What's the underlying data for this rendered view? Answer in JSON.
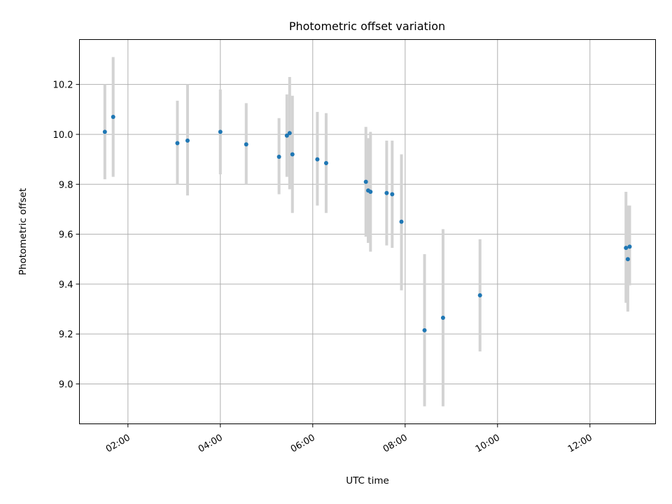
{
  "chart_data": {
    "type": "scatter",
    "title": "Photometric offset variation",
    "xlabel": "UTC time",
    "ylabel": "Photometric offset",
    "x_unit": "hours UTC",
    "xlim": [
      0.95,
      13.42
    ],
    "ylim": [
      8.84,
      10.38
    ],
    "xticks": [
      2,
      4,
      6,
      8,
      10,
      12
    ],
    "xtick_labels": [
      "02:00",
      "04:00",
      "06:00",
      "08:00",
      "10:00",
      "12:00"
    ],
    "yticks": [
      9.0,
      9.2,
      9.4,
      9.6,
      9.8,
      10.0,
      10.2
    ],
    "ytick_labels": [
      "9.0",
      "9.2",
      "9.4",
      "9.6",
      "9.8",
      "10.0",
      "10.2"
    ],
    "grid": true,
    "point_color": "#1f77b4",
    "errorbar_color": "#d3d3d3",
    "points": [
      {
        "x": 1.5,
        "y": 10.01,
        "ylow": 9.82,
        "yhigh": 10.2
      },
      {
        "x": 1.68,
        "y": 10.07,
        "ylow": 9.83,
        "yhigh": 10.31
      },
      {
        "x": 3.07,
        "y": 9.965,
        "ylow": 9.8,
        "yhigh": 10.135
      },
      {
        "x": 3.29,
        "y": 9.975,
        "ylow": 9.755,
        "yhigh": 10.2
      },
      {
        "x": 4.0,
        "y": 10.01,
        "ylow": 9.84,
        "yhigh": 10.18
      },
      {
        "x": 4.56,
        "y": 9.96,
        "ylow": 9.8,
        "yhigh": 10.125
      },
      {
        "x": 5.27,
        "y": 9.91,
        "ylow": 9.76,
        "yhigh": 10.065
      },
      {
        "x": 5.44,
        "y": 9.995,
        "ylow": 9.83,
        "yhigh": 10.16
      },
      {
        "x": 5.5,
        "y": 10.005,
        "ylow": 9.78,
        "yhigh": 10.23
      },
      {
        "x": 5.56,
        "y": 9.92,
        "ylow": 9.685,
        "yhigh": 10.155
      },
      {
        "x": 6.1,
        "y": 9.9,
        "ylow": 9.715,
        "yhigh": 10.09
      },
      {
        "x": 6.29,
        "y": 9.885,
        "ylow": 9.685,
        "yhigh": 10.085
      },
      {
        "x": 7.15,
        "y": 9.81,
        "ylow": 9.59,
        "yhigh": 10.03
      },
      {
        "x": 7.2,
        "y": 9.775,
        "ylow": 9.565,
        "yhigh": 9.985
      },
      {
        "x": 7.25,
        "y": 9.77,
        "ylow": 9.53,
        "yhigh": 10.01
      },
      {
        "x": 7.6,
        "y": 9.765,
        "ylow": 9.555,
        "yhigh": 9.975
      },
      {
        "x": 7.72,
        "y": 9.76,
        "ylow": 9.545,
        "yhigh": 9.975
      },
      {
        "x": 7.92,
        "y": 9.65,
        "ylow": 9.375,
        "yhigh": 9.92
      },
      {
        "x": 8.42,
        "y": 9.215,
        "ylow": 8.91,
        "yhigh": 9.52
      },
      {
        "x": 8.82,
        "y": 9.265,
        "ylow": 8.91,
        "yhigh": 9.62
      },
      {
        "x": 9.62,
        "y": 9.355,
        "ylow": 9.13,
        "yhigh": 9.58
      },
      {
        "x": 12.78,
        "y": 9.545,
        "ylow": 9.325,
        "yhigh": 9.77
      },
      {
        "x": 12.82,
        "y": 9.5,
        "ylow": 9.29,
        "yhigh": 9.715
      },
      {
        "x": 12.86,
        "y": 9.55,
        "ylow": 9.395,
        "yhigh": 9.715
      }
    ]
  }
}
